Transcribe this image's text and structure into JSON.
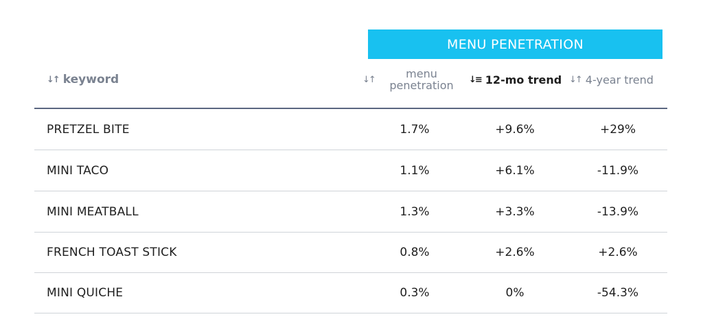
{
  "banner": {
    "title": "MENU PENETRATION"
  },
  "header": {
    "keyword_label": "keyword",
    "pen_label_line1": "menu",
    "pen_label_line2": "penetration",
    "trend12_label": "12-mo trend",
    "trend4_label": "4-year trend",
    "sort_icon": "↓↑",
    "sort_active_icon": "↓≡"
  },
  "rows": [
    {
      "keyword": "PRETZEL BITE",
      "penetration": "1.7%",
      "trend12": "+9.6%",
      "trend4": "+29%"
    },
    {
      "keyword": "MINI TACO",
      "penetration": "1.1%",
      "trend12": "+6.1%",
      "trend4": "-11.9%"
    },
    {
      "keyword": "MINI MEATBALL",
      "penetration": "1.3%",
      "trend12": "+3.3%",
      "trend4": "-13.9%"
    },
    {
      "keyword": "FRENCH TOAST STICK",
      "penetration": "0.8%",
      "trend12": "+2.6%",
      "trend4": "+2.6%"
    },
    {
      "keyword": "MINI QUICHE",
      "penetration": "0.3%",
      "trend12": "0%",
      "trend4": "-54.3%"
    }
  ],
  "colors": {
    "banner": "#18c1f0",
    "header_text": "#7a8290",
    "rule": "#5a6680"
  }
}
